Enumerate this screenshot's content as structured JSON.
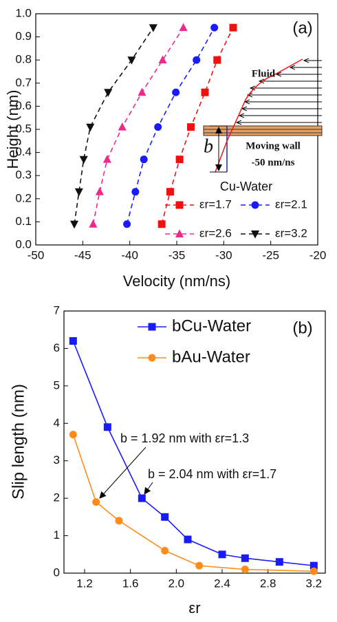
{
  "chart_data": [
    {
      "type": "line",
      "panel_label": "(a)",
      "xlabel": "Velocity (nm/ns)",
      "ylabel": "Height (nm)",
      "xlim": [
        -50,
        -20
      ],
      "xticks": [
        -50,
        -45,
        -40,
        -35,
        -30,
        -25,
        -20
      ],
      "ylim": [
        0,
        1.0
      ],
      "yticks": [
        {
          "value": 0,
          "label": "0.0"
        },
        0.1,
        0.2,
        0.3,
        0.4,
        0.5,
        0.6,
        0.7,
        0.8,
        0.9,
        {
          "value": 1.0,
          "label": "1.0"
        }
      ],
      "line_style": "dashed",
      "legend": "lower right",
      "legend_title": "Cu-Water",
      "annotations": [
        "Fluid",
        "Moving wall",
        "-50 nm/ns",
        "b"
      ],
      "series": [
        {
          "name": "εr=1.7",
          "color": "#ee1111",
          "marker": "square",
          "x": [
            -36.6,
            -35.7,
            -34.7,
            -33.5,
            -32.0,
            -30.7,
            -29.0
          ],
          "values": [
            0.09,
            0.23,
            0.37,
            0.51,
            0.66,
            0.8,
            0.94
          ]
        },
        {
          "name": "εr=2.1",
          "color": "#1a1aff",
          "marker": "circle",
          "x": [
            -40.3,
            -39.4,
            -38.5,
            -37.0,
            -35.1,
            -32.9,
            -31.0
          ],
          "values": [
            0.09,
            0.23,
            0.37,
            0.51,
            0.66,
            0.8,
            0.94
          ]
        },
        {
          "name": "εr=2.6",
          "color": "#f0288c",
          "marker": "triangle-up",
          "x": [
            -43.9,
            -43.2,
            -42.4,
            -40.8,
            -38.7,
            -36.5,
            -34.3
          ],
          "values": [
            0.09,
            0.23,
            0.37,
            0.51,
            0.66,
            0.8,
            0.94
          ]
        },
        {
          "name": "εr=3.2",
          "color": "#111111",
          "marker": "triangle-down",
          "x": [
            -45.9,
            -45.4,
            -44.9,
            -44.2,
            -42.3,
            -39.8,
            -37.5
          ],
          "values": [
            0.09,
            0.23,
            0.37,
            0.51,
            0.66,
            0.8,
            0.94
          ]
        }
      ]
    },
    {
      "type": "line",
      "panel_label": "(b)",
      "xlabel": "εr",
      "ylabel": "Slip length (nm)",
      "xlim": [
        1.02,
        3.3
      ],
      "xticks": [
        1.2,
        1.6,
        {
          "value": 2.0,
          "label": "2.0"
        },
        2.4,
        2.8,
        3.2
      ],
      "ylim": [
        0,
        7
      ],
      "yticks": [
        0,
        1,
        2,
        3,
        4,
        5,
        6,
        7
      ],
      "line_style": "solid",
      "legend": "upper center",
      "annotations": [
        "b = 1.92 nm with εr=1.3",
        "b = 2.04 nm with εr=1.7"
      ],
      "series": [
        {
          "name": "bCu-Water",
          "color": "#1a1aff",
          "marker": "square",
          "x": [
            1.1,
            1.4,
            1.7,
            1.9,
            2.1,
            2.4,
            2.6,
            2.9,
            3.2
          ],
          "values": [
            6.2,
            3.9,
            2.0,
            1.5,
            0.9,
            0.5,
            0.4,
            0.3,
            0.2
          ]
        },
        {
          "name": "bAu-Water",
          "color": "#ff8c1a",
          "marker": "circle",
          "x": [
            1.1,
            1.3,
            1.5,
            1.9,
            2.2,
            2.6,
            3.2
          ],
          "values": [
            3.7,
            1.9,
            1.4,
            0.6,
            0.2,
            0.1,
            0.05
          ]
        }
      ]
    }
  ]
}
